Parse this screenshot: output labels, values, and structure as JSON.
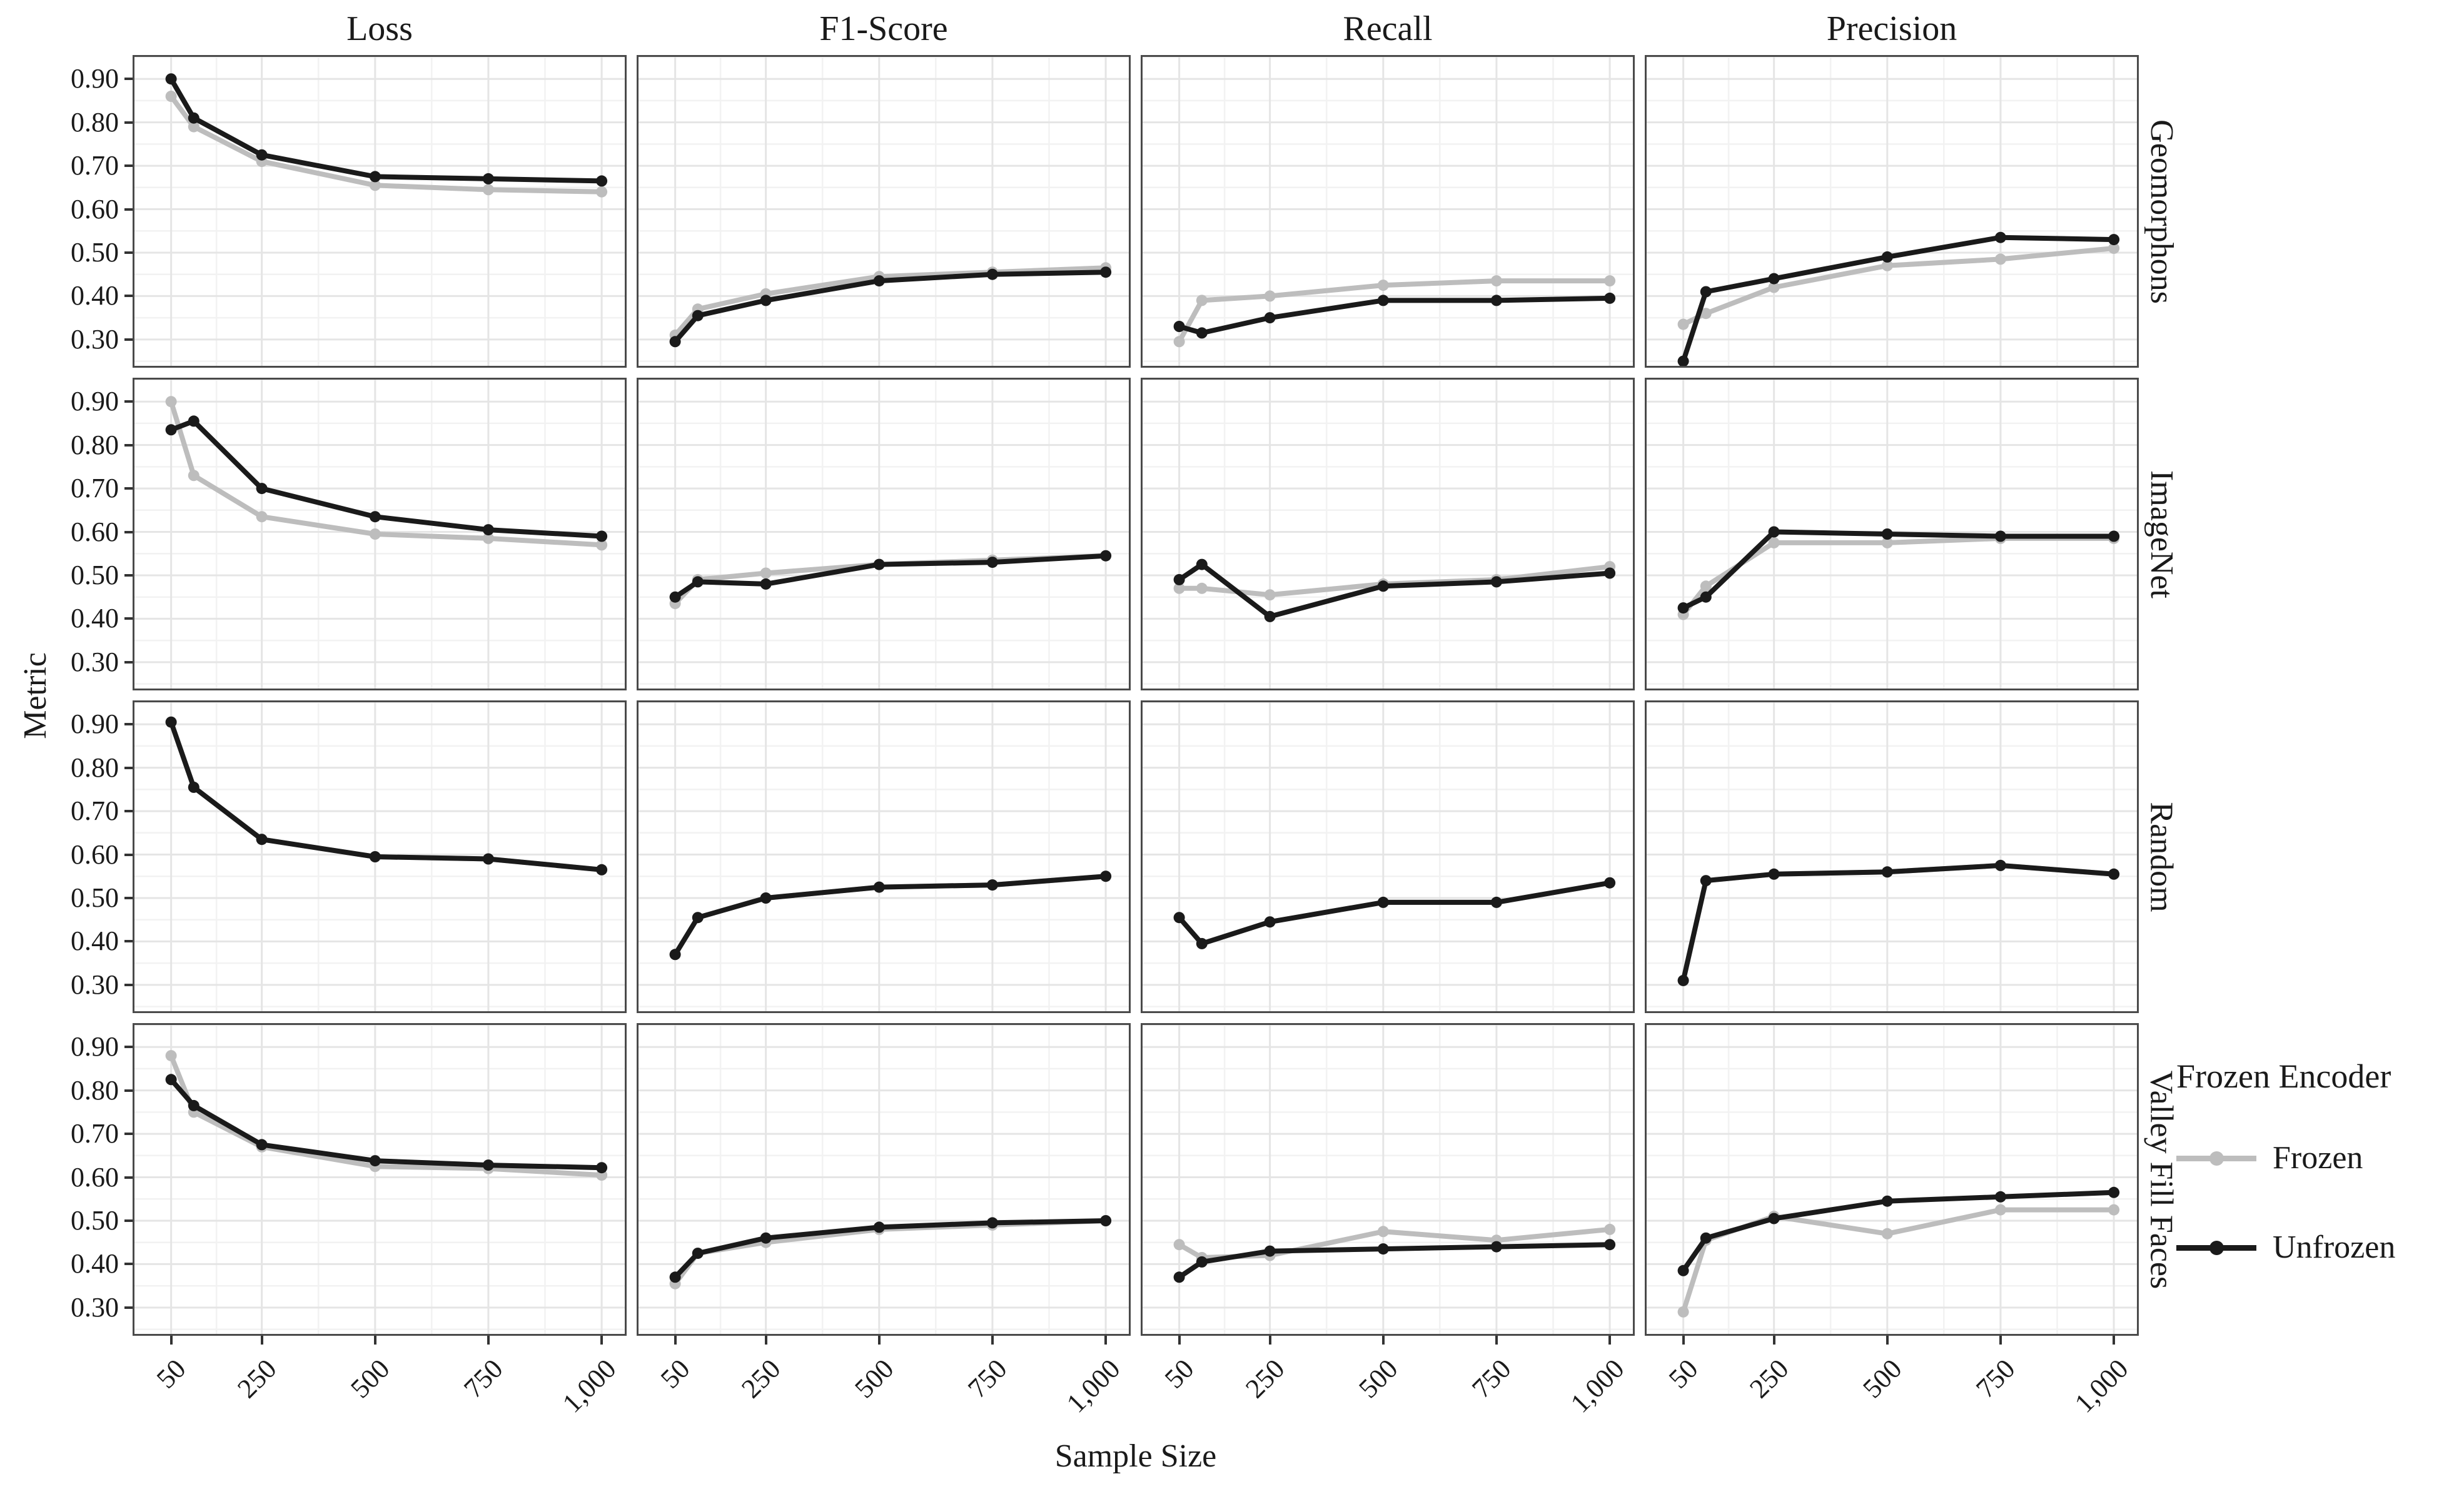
{
  "chart_data": {
    "type": "line",
    "title": "",
    "xlabel": "Sample Size",
    "ylabel": "Metric",
    "grid": true,
    "x": [
      50,
      100,
      250,
      500,
      750,
      1000
    ],
    "x_ticks": [
      50,
      250,
      500,
      750,
      1000
    ],
    "x_tick_labels": [
      "50",
      "250",
      "500",
      "750",
      "1,000"
    ],
    "xlim": [
      -35,
      1055
    ],
    "y_ticks": [
      0.9,
      0.8,
      0.7,
      0.6,
      0.5,
      0.4,
      0.3
    ],
    "y_tick_labels": [
      "0.90",
      "0.80",
      "0.70",
      "0.60",
      "0.50",
      "0.40",
      "0.30"
    ],
    "y_minor_ticks": [
      0.25,
      0.35,
      0.45,
      0.55,
      0.65,
      0.75,
      0.85,
      0.95
    ],
    "x_minor_ticks": [
      150,
      375,
      625,
      875
    ],
    "ylim": [
      0.235,
      0.955
    ],
    "col_facets": [
      "Loss",
      "F1-Score",
      "Recall",
      "Precision"
    ],
    "row_facets": [
      "Geomorphons",
      "ImageNet",
      "Random",
      "Valley Fill Faces"
    ],
    "legend": {
      "title": "Frozen Encoder",
      "position": "right",
      "items": [
        {
          "label": "Frozen",
          "color": "#bdbdbd"
        },
        {
          "label": "Unfrozen",
          "color": "#1a1a1a"
        }
      ]
    },
    "colors": {
      "frozen": "#bdbdbd",
      "unfrozen": "#1a1a1a",
      "grid_major": "#e5e5e5",
      "grid_minor": "#f2f2f2",
      "panel_border": "#4a4a4a",
      "tick": "#333333"
    },
    "panels": [
      {
        "row": "Geomorphons",
        "col": "Loss",
        "frozen": [
          0.86,
          0.79,
          0.71,
          0.655,
          0.645,
          0.64
        ],
        "unfrozen": [
          0.9,
          0.81,
          0.725,
          0.675,
          0.67,
          0.665
        ]
      },
      {
        "row": "Geomorphons",
        "col": "F1-Score",
        "frozen": [
          0.31,
          0.37,
          0.405,
          0.445,
          0.455,
          0.465
        ],
        "unfrozen": [
          0.295,
          0.355,
          0.39,
          0.435,
          0.45,
          0.455
        ]
      },
      {
        "row": "Geomorphons",
        "col": "Recall",
        "frozen": [
          0.295,
          0.39,
          0.4,
          0.425,
          0.435,
          0.435
        ],
        "unfrozen": [
          0.33,
          0.315,
          0.35,
          0.39,
          0.39,
          0.395
        ]
      },
      {
        "row": "Geomorphons",
        "col": "Precision",
        "frozen": [
          0.335,
          0.36,
          0.42,
          0.47,
          0.485,
          0.51
        ],
        "unfrozen": [
          0.25,
          0.41,
          0.44,
          0.49,
          0.535,
          0.53
        ]
      },
      {
        "row": "ImageNet",
        "col": "Loss",
        "frozen": [
          0.9,
          0.73,
          0.635,
          0.595,
          0.585,
          0.57
        ],
        "unfrozen": [
          0.835,
          0.855,
          0.7,
          0.635,
          0.605,
          0.59
        ]
      },
      {
        "row": "ImageNet",
        "col": "F1-Score",
        "frozen": [
          0.435,
          0.49,
          0.505,
          0.525,
          0.535,
          0.545
        ],
        "unfrozen": [
          0.45,
          0.485,
          0.48,
          0.525,
          0.53,
          0.545
        ]
      },
      {
        "row": "ImageNet",
        "col": "Recall",
        "frozen": [
          0.47,
          0.47,
          0.455,
          0.48,
          0.49,
          0.52
        ],
        "unfrozen": [
          0.49,
          0.525,
          0.405,
          0.475,
          0.485,
          0.505
        ]
      },
      {
        "row": "ImageNet",
        "col": "Precision",
        "frozen": [
          0.41,
          0.475,
          0.575,
          0.575,
          0.585,
          0.585
        ],
        "unfrozen": [
          0.425,
          0.45,
          0.6,
          0.595,
          0.59,
          0.59
        ]
      },
      {
        "row": "Random",
        "col": "Loss",
        "frozen": [
          0.905,
          0.755,
          0.635,
          0.595,
          0.59,
          0.565
        ],
        "unfrozen": [
          0.905,
          0.755,
          0.635,
          0.595,
          0.59,
          0.565
        ]
      },
      {
        "row": "Random",
        "col": "F1-Score",
        "frozen": [
          0.37,
          0.455,
          0.5,
          0.525,
          0.53,
          0.55
        ],
        "unfrozen": [
          0.37,
          0.455,
          0.5,
          0.525,
          0.53,
          0.55
        ]
      },
      {
        "row": "Random",
        "col": "Recall",
        "frozen": [
          0.455,
          0.395,
          0.445,
          0.49,
          0.49,
          0.535
        ],
        "unfrozen": [
          0.455,
          0.395,
          0.445,
          0.49,
          0.49,
          0.535
        ]
      },
      {
        "row": "Random",
        "col": "Precision",
        "frozen": [
          0.31,
          0.54,
          0.555,
          0.56,
          0.575,
          0.555
        ],
        "unfrozen": [
          0.31,
          0.54,
          0.555,
          0.56,
          0.575,
          0.555
        ]
      },
      {
        "row": "Valley Fill Faces",
        "col": "Loss",
        "frozen": [
          0.88,
          0.75,
          0.67,
          0.625,
          0.62,
          0.605
        ],
        "unfrozen": [
          0.825,
          0.765,
          0.675,
          0.638,
          0.628,
          0.622
        ]
      },
      {
        "row": "Valley Fill Faces",
        "col": "F1-Score",
        "frozen": [
          0.355,
          0.425,
          0.45,
          0.48,
          0.49,
          0.5
        ],
        "unfrozen": [
          0.37,
          0.425,
          0.46,
          0.485,
          0.495,
          0.5
        ]
      },
      {
        "row": "Valley Fill Faces",
        "col": "Recall",
        "frozen": [
          0.445,
          0.415,
          0.42,
          0.475,
          0.455,
          0.48
        ],
        "unfrozen": [
          0.37,
          0.405,
          0.43,
          0.435,
          0.44,
          0.445
        ]
      },
      {
        "row": "Valley Fill Faces",
        "col": "Precision",
        "frozen": [
          0.29,
          0.455,
          0.51,
          0.47,
          0.525,
          0.525
        ],
        "unfrozen": [
          0.385,
          0.46,
          0.505,
          0.545,
          0.555,
          0.565
        ]
      }
    ]
  }
}
